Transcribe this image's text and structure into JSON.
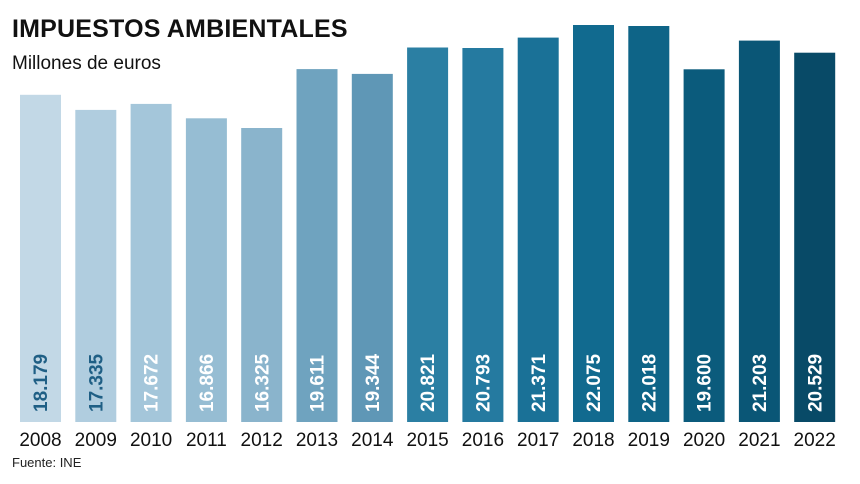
{
  "chart_data": {
    "type": "bar",
    "title": "IMPUESTOS AMBIENTALES",
    "subtitle": "Millones de euros",
    "source": "Fuente: INE",
    "categories": [
      "2008",
      "2009",
      "2010",
      "2011",
      "2012",
      "2013",
      "2014",
      "2015",
      "2016",
      "2017",
      "2018",
      "2019",
      "2020",
      "2021",
      "2022"
    ],
    "values": [
      18179,
      17335,
      17672,
      16866,
      16325,
      19611,
      19344,
      20821,
      20793,
      21371,
      22075,
      22018,
      19600,
      21203,
      20529
    ],
    "value_labels": [
      "18.179",
      "17.335",
      "17.672",
      "16.866",
      "16.325",
      "19.611",
      "19.344",
      "20.821",
      "20.793",
      "21.371",
      "22.075",
      "22.018",
      "19.600",
      "21.203",
      "20.529"
    ],
    "ylim": [
      0,
      23000
    ],
    "grid": false,
    "legend": "none",
    "colors": [
      "#c2d8e6",
      "#b0cddf",
      "#a4c6da",
      "#96bdd3",
      "#8ab4cc",
      "#6fa3bf",
      "#5f97b6",
      "#2b7fa3",
      "#257aa0",
      "#1a7197",
      "#116a8f",
      "#0e6487",
      "#0b5b7c",
      "#0a5676",
      "#084a67"
    ],
    "label_colors": [
      "#1f5f85",
      "#1f5f85",
      "#ffffff",
      "#ffffff",
      "#ffffff",
      "#ffffff",
      "#ffffff",
      "#ffffff",
      "#ffffff",
      "#ffffff",
      "#ffffff",
      "#ffffff",
      "#ffffff",
      "#ffffff",
      "#ffffff"
    ]
  }
}
